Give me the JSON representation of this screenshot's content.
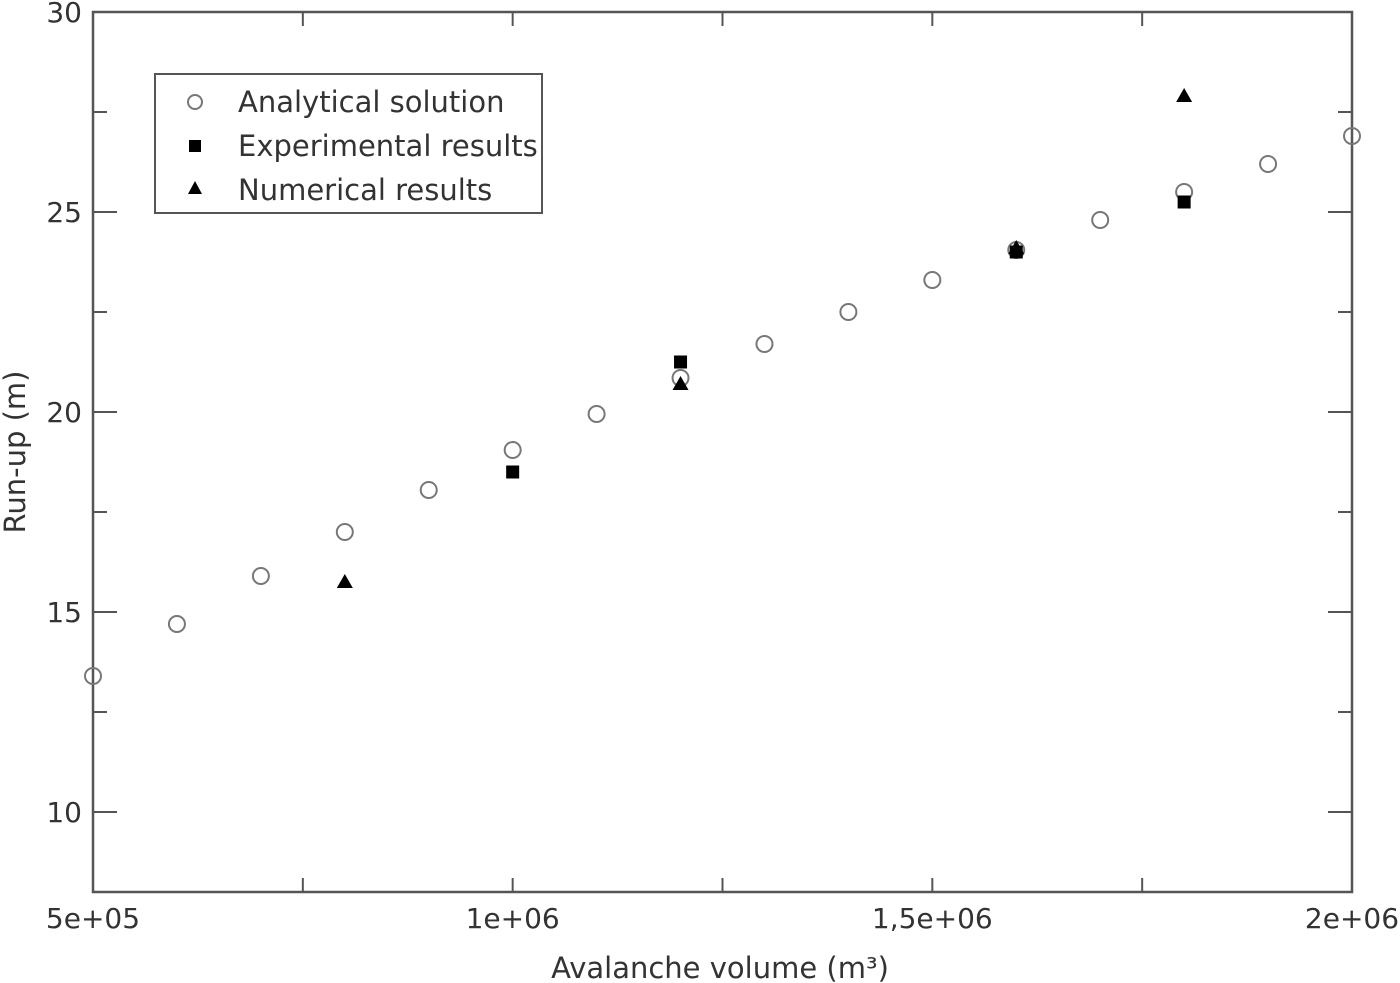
{
  "chart_data": {
    "type": "scatter",
    "title": "",
    "xlabel": "Avalanche volume (m³)",
    "ylabel": "Run-up (m)",
    "xlim": [
      500000,
      2000000
    ],
    "ylim": [
      8,
      30
    ],
    "xticks": [
      {
        "value": 500000,
        "label": "5e+05"
      },
      {
        "value": 1000000,
        "label": "1e+06"
      },
      {
        "value": 1500000,
        "label": "1,5e+06"
      },
      {
        "value": 2000000,
        "label": "2e+06"
      }
    ],
    "xminor": [
      750000,
      1250000,
      1750000
    ],
    "yticks": [
      {
        "value": 10,
        "label": "10"
      },
      {
        "value": 15,
        "label": "15"
      },
      {
        "value": 20,
        "label": "20"
      },
      {
        "value": 25,
        "label": "25"
      },
      {
        "value": 30,
        "label": "30"
      }
    ],
    "yminor": [
      12.5,
      17.5,
      22.5,
      27.5
    ],
    "grid": false,
    "legend_position": "top-left",
    "series": [
      {
        "name": "Analytical solution",
        "marker": "open-circle",
        "color": "#777777",
        "x": [
          500000,
          600000,
          700000,
          800000,
          900000,
          1000000,
          1100000,
          1200000,
          1300000,
          1400000,
          1500000,
          1600000,
          1700000,
          1800000,
          1900000,
          2000000
        ],
        "y": [
          13.4,
          14.7,
          15.9,
          17.0,
          18.05,
          19.05,
          19.95,
          20.85,
          21.7,
          22.5,
          23.3,
          24.05,
          24.8,
          25.5,
          26.2,
          26.9
        ]
      },
      {
        "name": "Experimental results",
        "marker": "filled-square",
        "color": "#000000",
        "x": [
          1000000,
          1200000,
          1600000,
          1800000
        ],
        "y": [
          18.5,
          21.25,
          24.0,
          25.25
        ]
      },
      {
        "name": "Numerical results",
        "marker": "filled-triangle",
        "color": "#000000",
        "x": [
          800000,
          1200000,
          1600000,
          1800000
        ],
        "y": [
          15.75,
          20.7,
          24.1,
          27.9
        ]
      }
    ]
  }
}
